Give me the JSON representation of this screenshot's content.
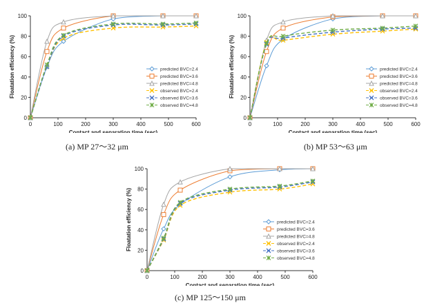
{
  "common": {
    "ylabel": "Floatation efficiency (%)",
    "xlabel": "Contact and separation time (sec)",
    "x_ticks": [
      0,
      100,
      200,
      300,
      400,
      500,
      600
    ],
    "y_ticks": [
      0,
      20,
      40,
      60,
      80,
      100
    ],
    "series_styles": [
      {
        "name": "predicted BVC=2.4",
        "color": "#5b9bd5",
        "marker": "diamond",
        "line": "solid"
      },
      {
        "name": "predicted BVC=3.6",
        "color": "#ed7d31",
        "marker": "square",
        "line": "solid"
      },
      {
        "name": "predicted BVC=4.8",
        "color": "#a5a5a5",
        "marker": "triangle",
        "line": "solid"
      },
      {
        "name": "observed BVC=2.4",
        "color": "#ffc000",
        "marker": "x",
        "line": "dashed"
      },
      {
        "name": "observed BVC=3.6",
        "color": "#4472c4",
        "marker": "x",
        "line": "dashed"
      },
      {
        "name": "observed BVC=4.8",
        "color": "#70ad47",
        "marker": "star",
        "line": "dashed"
      }
    ]
  },
  "chart_data": [
    {
      "type": "line",
      "caption": "(a)  MP  27～32  μm",
      "xlim": [
        0,
        600
      ],
      "ylim": [
        0,
        100
      ],
      "x": [
        0,
        60,
        120,
        300,
        480,
        600
      ],
      "series": [
        {
          "name": "predicted BVC=2.4",
          "values": [
            0,
            50,
            75,
            97,
            100,
            100
          ]
        },
        {
          "name": "predicted BVC=3.6",
          "values": [
            0,
            65,
            88,
            100,
            100,
            100
          ]
        },
        {
          "name": "predicted BVC=4.8",
          "values": [
            0,
            75,
            94,
            100,
            100,
            100
          ]
        },
        {
          "name": "observed BVC=2.4",
          "values": [
            0,
            50,
            78,
            88,
            89,
            90
          ]
        },
        {
          "name": "observed BVC=3.6",
          "values": [
            0,
            50,
            80,
            91,
            91,
            92
          ]
        },
        {
          "name": "observed BVC=4.8",
          "values": [
            0,
            52,
            81,
            92,
            92,
            93
          ]
        }
      ]
    },
    {
      "type": "line",
      "caption": "(b)  MP  53～63  μm",
      "xlim": [
        0,
        600
      ],
      "ylim": [
        0,
        100
      ],
      "x": [
        0,
        60,
        120,
        300,
        480,
        600
      ],
      "series": [
        {
          "name": "predicted BVC=2.4",
          "values": [
            0,
            51,
            77,
            97,
            100,
            100
          ]
        },
        {
          "name": "predicted BVC=3.6",
          "values": [
            0,
            65,
            88,
            99,
            100,
            100
          ]
        },
        {
          "name": "predicted BVC=4.8",
          "values": [
            0,
            76,
            94,
            100,
            100,
            100
          ]
        },
        {
          "name": "observed BVC=2.4",
          "values": [
            0,
            74,
            76,
            82,
            85,
            87
          ]
        },
        {
          "name": "observed BVC=3.6",
          "values": [
            0,
            72,
            78,
            84,
            87,
            88
          ]
        },
        {
          "name": "observed BVC=4.8",
          "values": [
            0,
            73,
            80,
            86,
            88,
            90
          ]
        }
      ]
    },
    {
      "type": "line",
      "caption": "(c)  MP  125～150  μm",
      "xlim": [
        0,
        600
      ],
      "ylim": [
        0,
        100
      ],
      "x": [
        0,
        60,
        120,
        300,
        480,
        600
      ],
      "series": [
        {
          "name": "predicted BVC=2.4",
          "values": [
            0,
            41,
            65,
            92,
            99,
            100
          ]
        },
        {
          "name": "predicted BVC=3.6",
          "values": [
            0,
            55,
            79,
            98,
            100,
            100
          ]
        },
        {
          "name": "predicted BVC=4.8",
          "values": [
            0,
            65,
            87,
            100,
            100,
            100
          ]
        },
        {
          "name": "observed BVC=2.4",
          "values": [
            0,
            30,
            64,
            77,
            80,
            85
          ]
        },
        {
          "name": "observed BVC=3.6",
          "values": [
            0,
            31,
            66,
            79,
            82,
            87
          ]
        },
        {
          "name": "observed BVC=4.8",
          "values": [
            0,
            32,
            67,
            80,
            83,
            88
          ]
        }
      ]
    }
  ]
}
